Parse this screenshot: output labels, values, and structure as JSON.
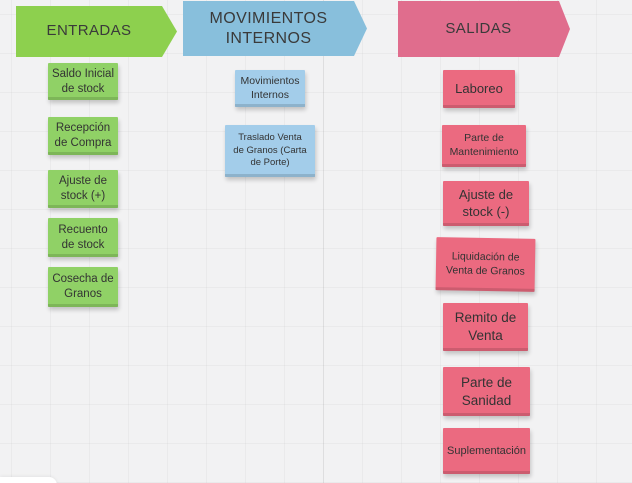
{
  "board": {
    "background_color": "#f2f2f3",
    "grid_line_color": "rgba(0,0,0,0.032)"
  },
  "columns": [
    {
      "id": "entradas",
      "header": {
        "label": "ENTRADAS",
        "color": "#8dd04e"
      },
      "note_color": "#90d166",
      "notes": [
        {
          "text": "Saldo Inicial\nde stock"
        },
        {
          "text": "Recepción\nde Compra"
        },
        {
          "text": "Ajuste de\nstock (+)"
        },
        {
          "text": "Recuento\nde stock"
        },
        {
          "text": "Cosecha de\nGranos"
        }
      ]
    },
    {
      "id": "movimientos-internos",
      "header": {
        "label": "MOVIMIENTOS\nINTERNOS",
        "color": "#88bfdc"
      },
      "note_color": "#a3cdea",
      "notes": [
        {
          "text": "Movimientos\nInternos"
        },
        {
          "text": "Traslado Venta\nde Granos (Carta\nde Porte)"
        }
      ]
    },
    {
      "id": "salidas",
      "header": {
        "label": "SALIDAS",
        "color": "#e06d8d"
      },
      "note_color": "#eb6a80",
      "notes": [
        {
          "text": "Laboreo"
        },
        {
          "text": "Parte de\nMantenimiento"
        },
        {
          "text": "Ajuste de\nstock (-)"
        },
        {
          "text": "Liquidación de\nVenta de Granos"
        },
        {
          "text": "Remito de\nVenta"
        },
        {
          "text": "Parte de\nSanidad"
        },
        {
          "text": "Suplementación"
        }
      ]
    }
  ]
}
